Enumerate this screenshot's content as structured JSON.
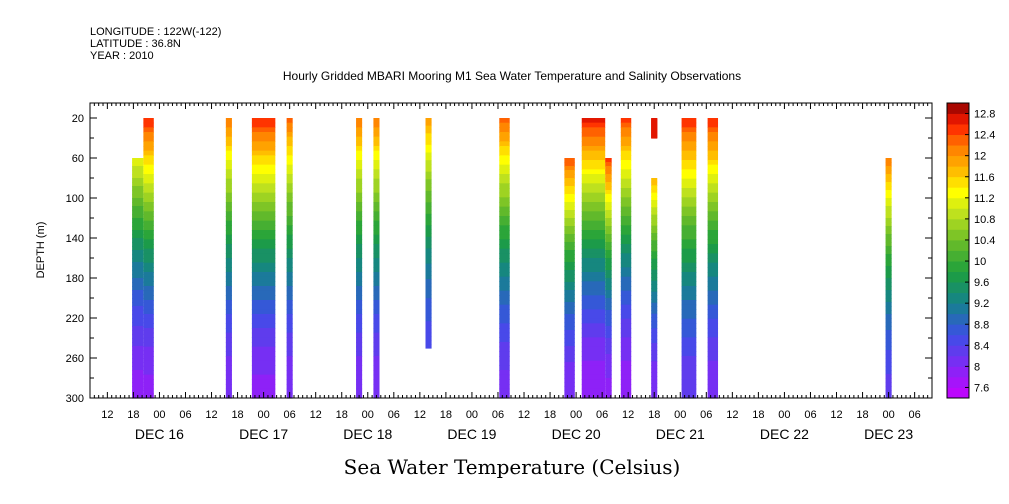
{
  "header": {
    "meta": [
      "LONGITUDE : 122W(-122)",
      "LATITUDE : 36.8N",
      "YEAR : 2010"
    ],
    "title": "Hourly Gridded MBARI Mooring M1 Sea Water Temperature and Salinity Observations"
  },
  "footer": {
    "label": "Sea Water Temperature (Celsius)"
  },
  "chart_data": {
    "type": "heatmap",
    "title": "Hourly Gridded MBARI Mooring M1 Sea Water Temperature and Salinity Observations",
    "xlabel": "",
    "ylabel": "DEPTH (m)",
    "x_range_hours_from_dec16_00": [
      -16,
      178
    ],
    "ylim": [
      300,
      5
    ],
    "y_inverted": true,
    "hour_tick_labels": [
      "12",
      "18",
      "00",
      "06",
      "12",
      "18",
      "00",
      "06",
      "12",
      "18",
      "00",
      "06",
      "12",
      "18",
      "00",
      "06",
      "12",
      "18",
      "00",
      "06",
      "12",
      "18",
      "00",
      "06",
      "12",
      "18",
      "00",
      "06",
      "12",
      "18",
      "00",
      "06"
    ],
    "hour_tick_values": [
      -12,
      -6,
      0,
      6,
      12,
      18,
      24,
      30,
      36,
      42,
      48,
      54,
      60,
      66,
      72,
      78,
      84,
      90,
      96,
      102,
      108,
      114,
      120,
      126,
      132,
      138,
      144,
      150,
      156,
      162,
      168,
      174
    ],
    "day_tick_labels": [
      {
        "label": "DEC 16",
        "hour": 0
      },
      {
        "label": "DEC 17",
        "hour": 24
      },
      {
        "label": "DEC 18",
        "hour": 48
      },
      {
        "label": "DEC 19",
        "hour": 72
      },
      {
        "label": "DEC 20",
        "hour": 96
      },
      {
        "label": "DEC 21",
        "hour": 120
      },
      {
        "label": "DEC 22",
        "hour": 144
      },
      {
        "label": "DEC 23",
        "hour": 168
      }
    ],
    "y_ticks": [
      20,
      60,
      100,
      140,
      180,
      220,
      260,
      300
    ],
    "colorbar": {
      "label_values": [
        7.6,
        8,
        8.4,
        8.8,
        9.2,
        9.6,
        10,
        10.4,
        10.8,
        11.2,
        11.6,
        12,
        12.4,
        12.8
      ],
      "labels": [
        "7.6",
        "8",
        "8.4",
        "8.8",
        "9.2",
        "9.6",
        "10",
        "10.4",
        "10.8",
        "11.2",
        "11.6",
        "12",
        "12.4",
        "12.8"
      ],
      "min": 7.4,
      "max": 13.0,
      "step": 0.2
    },
    "observation_bands": [
      {
        "hour_start": -6.3,
        "hour_end": -3.7,
        "depth_top": 60,
        "depth_bottom": 300,
        "t_surface": 11.2,
        "t_bottom": 7.9
      },
      {
        "hour_start": -3.7,
        "hour_end": -1.3,
        "depth_top": 20,
        "depth_bottom": 300,
        "t_surface": 12.6,
        "t_bottom": 7.9
      },
      {
        "hour_start": 15.3,
        "hour_end": 16.7,
        "depth_top": 20,
        "depth_bottom": 300,
        "t_surface": 12.2,
        "t_bottom": 8.0
      },
      {
        "hour_start": 21.3,
        "hour_end": 26.7,
        "depth_top": 20,
        "depth_bottom": 300,
        "t_surface": 12.6,
        "t_bottom": 7.9
      },
      {
        "hour_start": 29.3,
        "hour_end": 30.7,
        "depth_top": 20,
        "depth_bottom": 300,
        "t_surface": 12.3,
        "t_bottom": 8.0
      },
      {
        "hour_start": 45.3,
        "hour_end": 46.7,
        "depth_top": 20,
        "depth_bottom": 300,
        "t_surface": 12.2,
        "t_bottom": 8.0
      },
      {
        "hour_start": 49.3,
        "hour_end": 50.7,
        "depth_top": 20,
        "depth_bottom": 300,
        "t_surface": 12.2,
        "t_bottom": 8.0
      },
      {
        "hour_start": 61.3,
        "hour_end": 62.7,
        "depth_top": 20,
        "depth_bottom": 250,
        "t_surface": 12.0,
        "t_bottom": 8.5
      },
      {
        "hour_start": 78.3,
        "hour_end": 80.7,
        "depth_top": 20,
        "depth_bottom": 300,
        "t_surface": 12.3,
        "t_bottom": 8.1
      },
      {
        "hour_start": 93.3,
        "hour_end": 95.7,
        "depth_top": 60,
        "depth_bottom": 300,
        "t_surface": 12.4,
        "t_bottom": 8.0
      },
      {
        "hour_start": 97.3,
        "hour_end": 102.7,
        "depth_top": 20,
        "depth_bottom": 300,
        "t_surface": 12.7,
        "t_bottom": 7.8
      },
      {
        "hour_start": 102.7,
        "hour_end": 104.2,
        "depth_top": 60,
        "depth_bottom": 300,
        "t_surface": 12.5,
        "t_bottom": 7.9
      },
      {
        "hour_start": 106.3,
        "hour_end": 108.7,
        "depth_top": 20,
        "depth_bottom": 300,
        "t_surface": 12.5,
        "t_bottom": 7.8
      },
      {
        "hour_start": 113.3,
        "hour_end": 114.7,
        "depth_top": 80,
        "depth_bottom": 300,
        "t_surface": 11.8,
        "t_bottom": 8.0
      },
      {
        "hour_start": 113.3,
        "hour_end": 114.7,
        "depth_top": 20,
        "depth_bottom": 40,
        "t_surface": 12.7,
        "t_bottom": 12.6
      },
      {
        "hour_start": 120.3,
        "hour_end": 123.7,
        "depth_top": 20,
        "depth_bottom": 300,
        "t_surface": 12.6,
        "t_bottom": 8.2
      },
      {
        "hour_start": 126.3,
        "hour_end": 128.7,
        "depth_top": 20,
        "depth_bottom": 300,
        "t_surface": 12.6,
        "t_bottom": 8.0
      },
      {
        "hour_start": 167.3,
        "hour_end": 168.7,
        "depth_top": 60,
        "depth_bottom": 300,
        "t_surface": 12.2,
        "t_bottom": 8.3
      }
    ]
  }
}
